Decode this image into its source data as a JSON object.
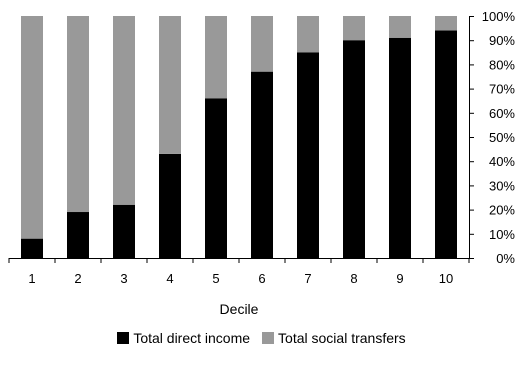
{
  "chart_data": {
    "type": "bar",
    "stacked": true,
    "categories": [
      "1",
      "2",
      "3",
      "4",
      "5",
      "6",
      "7",
      "8",
      "9",
      "10"
    ],
    "series": [
      {
        "name": "Total direct income",
        "color": "#000000",
        "values": [
          8,
          19,
          22,
          43,
          66,
          77,
          85,
          90,
          91,
          94
        ]
      },
      {
        "name": "Total social transfers",
        "color": "#999999",
        "values": [
          92,
          81,
          78,
          57,
          34,
          23,
          15,
          10,
          9,
          6
        ]
      }
    ],
    "xlabel": "Decile",
    "ylabel": "",
    "ylim": [
      0,
      100
    ],
    "yticks": [
      "0%",
      "10%",
      "20%",
      "30%",
      "40%",
      "50%",
      "60%",
      "70%",
      "80%",
      "90%",
      "100%"
    ],
    "grid": false,
    "legend_position": "bottom"
  }
}
